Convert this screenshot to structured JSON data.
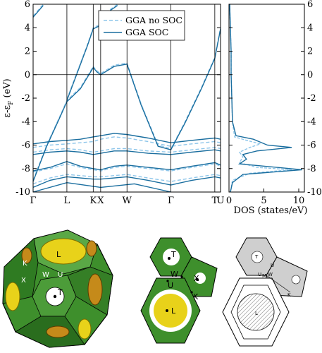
{
  "chart_data": [
    {
      "type": "line",
      "ylabel": "ε-ε_F (eV)",
      "ylabel_parts": {
        "epsilon": "ε-ε",
        "sub": "F",
        "unit": " (eV)"
      },
      "ylim": [
        -10,
        6
      ],
      "yticks": [
        -10,
        -8,
        -6,
        -4,
        -2,
        0,
        2,
        4,
        6
      ],
      "k_points": [
        "Γ",
        "L",
        "K",
        "X",
        "W",
        "Γ",
        "T",
        "U"
      ],
      "k_positions": [
        0,
        1.0,
        1.78,
        2.0,
        2.78,
        4.08,
        5.38,
        5.55
      ],
      "grid": false,
      "legend_position": "top-right",
      "series": [
        {
          "name": "GGA no SOC",
          "style": "dashed",
          "color": "#8ec6ea",
          "bands": [
            [
              [
                0,
                -9.3
              ],
              [
                0.5,
                -8.8
              ],
              [
                1.0,
                -8.5
              ],
              [
                1.4,
                -8.6
              ],
              [
                1.78,
                -8.7
              ],
              [
                2.0,
                -8.7
              ],
              [
                2.4,
                -8.6
              ],
              [
                2.78,
                -8.5
              ],
              [
                3.4,
                -8.8
              ],
              [
                4.08,
                -9.1
              ],
              [
                4.7,
                -8.8
              ],
              [
                5.38,
                -8.5
              ],
              [
                5.55,
                -8.6
              ]
            ],
            [
              [
                0,
                -8.3
              ],
              [
                0.5,
                -8.0
              ],
              [
                1.0,
                -7.6
              ],
              [
                1.4,
                -7.9
              ],
              [
                1.78,
                -8.1
              ],
              [
                2.0,
                -8.2
              ],
              [
                2.4,
                -7.9
              ],
              [
                2.78,
                -7.8
              ],
              [
                3.4,
                -8.0
              ],
              [
                4.08,
                -8.2
              ],
              [
                4.7,
                -7.9
              ],
              [
                5.38,
                -7.6
              ],
              [
                5.55,
                -7.8
              ]
            ],
            [
              [
                0,
                -6.6
              ],
              [
                0.5,
                -6.4
              ],
              [
                1.0,
                -6.3
              ],
              [
                1.4,
                -6.4
              ],
              [
                1.78,
                -6.6
              ],
              [
                2.0,
                -6.5
              ],
              [
                2.4,
                -6.3
              ],
              [
                2.78,
                -6.3
              ],
              [
                3.4,
                -6.5
              ],
              [
                4.08,
                -6.6
              ],
              [
                4.7,
                -6.4
              ],
              [
                5.38,
                -6.2
              ],
              [
                5.55,
                -6.3
              ]
            ],
            [
              [
                0,
                -6.2
              ],
              [
                0.5,
                -6.0
              ],
              [
                1.0,
                -5.9
              ],
              [
                1.4,
                -5.8
              ],
              [
                1.78,
                -5.7
              ],
              [
                2.0,
                -5.5
              ],
              [
                2.4,
                -5.3
              ],
              [
                2.78,
                -5.4
              ],
              [
                3.4,
                -5.7
              ],
              [
                4.08,
                -6.1
              ],
              [
                4.7,
                -5.9
              ],
              [
                5.38,
                -5.7
              ],
              [
                5.55,
                -5.8
              ]
            ],
            [
              [
                0,
                -9.0
              ],
              [
                0.4,
                -6.0
              ],
              [
                0.8,
                -3.5
              ],
              [
                1.0,
                -2.2
              ],
              [
                1.4,
                -1.1
              ],
              [
                1.78,
                0.7
              ],
              [
                1.9,
                0.3
              ],
              [
                2.0,
                0.1
              ],
              [
                2.4,
                0.8
              ],
              [
                2.78,
                1.0
              ],
              [
                3.2,
                -2.5
              ],
              [
                3.7,
                -6.0
              ],
              [
                4.08,
                -6.3
              ],
              [
                4.5,
                -4.0
              ],
              [
                5.0,
                -1.0
              ],
              [
                5.38,
                1.5
              ],
              [
                5.55,
                4.0
              ]
            ],
            [
              [
                0,
                5.0
              ],
              [
                0.3,
                6.0
              ]
            ],
            [
              [
                1.0,
                -2.1
              ],
              [
                1.3,
                0.2
              ],
              [
                1.6,
                2.5
              ],
              [
                1.78,
                4.0
              ],
              [
                2.0,
                4.3
              ],
              [
                2.3,
                5.6
              ],
              [
                2.5,
                6.0
              ]
            ]
          ]
        },
        {
          "name": "GGA SOC",
          "style": "solid",
          "color": "#1a6e9f",
          "bands": [
            [
              [
                0,
                -9.6
              ],
              [
                0.5,
                -9.0
              ],
              [
                1.0,
                -8.7
              ],
              [
                1.4,
                -8.8
              ],
              [
                1.78,
                -8.9
              ],
              [
                2.0,
                -8.9
              ],
              [
                2.4,
                -8.8
              ],
              [
                2.78,
                -8.7
              ],
              [
                3.4,
                -9.0
              ],
              [
                4.08,
                -9.4
              ],
              [
                4.7,
                -9.0
              ],
              [
                5.38,
                -8.7
              ],
              [
                5.55,
                -8.8
              ]
            ],
            [
              [
                0,
                -8.2
              ],
              [
                0.5,
                -7.9
              ],
              [
                1.0,
                -7.4
              ],
              [
                1.4,
                -7.8
              ],
              [
                1.78,
                -8.0
              ],
              [
                2.0,
                -8.1
              ],
              [
                2.4,
                -7.8
              ],
              [
                2.78,
                -7.7
              ],
              [
                3.4,
                -7.9
              ],
              [
                4.08,
                -8.1
              ],
              [
                4.7,
                -7.8
              ],
              [
                5.38,
                -7.5
              ],
              [
                5.55,
                -7.7
              ]
            ],
            [
              [
                0,
                -6.8
              ],
              [
                0.5,
                -6.6
              ],
              [
                1.0,
                -6.5
              ],
              [
                1.4,
                -6.6
              ],
              [
                1.78,
                -6.8
              ],
              [
                2.0,
                -6.7
              ],
              [
                2.4,
                -6.5
              ],
              [
                2.78,
                -6.5
              ],
              [
                3.4,
                -6.7
              ],
              [
                4.08,
                -6.8
              ],
              [
                4.7,
                -6.6
              ],
              [
                5.38,
                -6.4
              ],
              [
                5.55,
                -6.5
              ]
            ],
            [
              [
                0,
                -5.9
              ],
              [
                0.5,
                -5.7
              ],
              [
                1.0,
                -5.6
              ],
              [
                1.4,
                -5.5
              ],
              [
                1.78,
                -5.3
              ],
              [
                2.0,
                -5.2
              ],
              [
                2.4,
                -5.0
              ],
              [
                2.78,
                -5.1
              ],
              [
                3.4,
                -5.4
              ],
              [
                4.08,
                -5.8
              ],
              [
                4.7,
                -5.6
              ],
              [
                5.38,
                -5.4
              ],
              [
                5.55,
                -5.5
              ]
            ],
            [
              [
                0,
                -9.1
              ],
              [
                0.4,
                -6.1
              ],
              [
                0.8,
                -3.6
              ],
              [
                1.0,
                -2.3
              ],
              [
                1.4,
                -1.2
              ],
              [
                1.78,
                0.6
              ],
              [
                1.9,
                0.2
              ],
              [
                2.0,
                0.0
              ],
              [
                2.4,
                0.7
              ],
              [
                2.78,
                0.9
              ],
              [
                3.2,
                -2.6
              ],
              [
                3.7,
                -6.1
              ],
              [
                4.08,
                -6.4
              ],
              [
                4.5,
                -4.1
              ],
              [
                5.0,
                -1.1
              ],
              [
                5.38,
                1.4
              ],
              [
                5.55,
                3.9
              ]
            ],
            [
              [
                0,
                4.9
              ],
              [
                0.3,
                5.9
              ]
            ],
            [
              [
                1.0,
                -2.2
              ],
              [
                1.3,
                0.1
              ],
              [
                1.6,
                2.4
              ],
              [
                1.78,
                3.9
              ],
              [
                2.0,
                4.2
              ],
              [
                2.3,
                5.5
              ],
              [
                2.5,
                5.9
              ]
            ],
            [
              [
                0,
                -10.0
              ],
              [
                1.0,
                -9.2
              ],
              [
                2.0,
                -9.6
              ],
              [
                3.0,
                -9.3
              ],
              [
                4.08,
                -10.0
              ]
            ]
          ]
        }
      ]
    },
    {
      "type": "line",
      "xlabel": "DOS (states/eV)",
      "xlim": [
        0,
        10
      ],
      "xticks": [
        0,
        5,
        10
      ],
      "ylim": [
        -10,
        6
      ],
      "yticks": [
        -10,
        -8,
        -6,
        -4,
        -2,
        0,
        2,
        4,
        6
      ],
      "grid": false,
      "series": [
        {
          "name": "GGA no SOC",
          "style": "dashed",
          "color": "#8ec6ea",
          "points": [
            [
              0.1,
              6
            ],
            [
              0.2,
              4
            ],
            [
              0.3,
              2
            ],
            [
              0.3,
              0
            ],
            [
              0.4,
              -2
            ],
            [
              0.5,
              -4
            ],
            [
              0.8,
              -5.3
            ],
            [
              2.5,
              -5.6
            ],
            [
              4.5,
              -5.9
            ],
            [
              3.0,
              -6.2
            ],
            [
              1.5,
              -6.6
            ],
            [
              2.0,
              -7.0
            ],
            [
              1.5,
              -7.5
            ],
            [
              4.0,
              -7.9
            ],
            [
              9.0,
              -8.1
            ],
            [
              3.0,
              -8.4
            ],
            [
              0.5,
              -9.0
            ],
            [
              0.2,
              -10
            ]
          ]
        },
        {
          "name": "GGA SOC",
          "style": "solid",
          "color": "#1a6e9f",
          "points": [
            [
              0.1,
              6
            ],
            [
              0.2,
              4
            ],
            [
              0.3,
              2
            ],
            [
              0.3,
              0
            ],
            [
              0.4,
              -2
            ],
            [
              0.5,
              -4
            ],
            [
              1.0,
              -5.2
            ],
            [
              3.5,
              -5.5
            ],
            [
              5.5,
              -6.0
            ],
            [
              9.0,
              -6.2
            ],
            [
              4.0,
              -6.5
            ],
            [
              2.0,
              -6.8
            ],
            [
              2.5,
              -7.2
            ],
            [
              1.5,
              -7.6
            ],
            [
              10.5,
              -8.1
            ],
            [
              2.0,
              -8.5
            ],
            [
              0.5,
              -9.2
            ],
            [
              0.2,
              -10
            ]
          ]
        }
      ]
    }
  ],
  "bz_panels": {
    "sphere_labels": [
      "L",
      "K",
      "W",
      "U",
      "X",
      "T"
    ],
    "projection_labels": [
      "T",
      "W",
      "X",
      "U",
      "K",
      "L"
    ],
    "sketch_labels": [
      "T",
      "U",
      "W",
      "M",
      "K",
      "L"
    ]
  }
}
